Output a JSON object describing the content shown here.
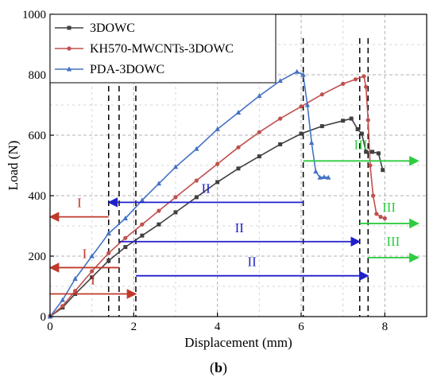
{
  "chart_data": {
    "type": "line",
    "xlabel": "Displacement (mm)",
    "ylabel": "Load (N)",
    "xlim": [
      0,
      9
    ],
    "ylim": [
      0,
      1000
    ],
    "x_ticks": [
      0,
      2,
      4,
      6,
      8
    ],
    "y_ticks": [
      0,
      200,
      400,
      600,
      800,
      1000
    ],
    "grid": "dashed",
    "legend_position": "top-left",
    "series": [
      {
        "name": "3DOWC",
        "color": "#404040",
        "marker": "square",
        "x": [
          0,
          0.3,
          0.6,
          1.0,
          1.4,
          1.8,
          2.2,
          2.6,
          3.0,
          3.5,
          4.0,
          4.5,
          5.0,
          5.5,
          6.0,
          6.5,
          7.0,
          7.2,
          7.35,
          7.45,
          7.55,
          7.7,
          7.85,
          7.95
        ],
        "y": [
          0,
          30,
          75,
          130,
          185,
          230,
          268,
          305,
          345,
          395,
          445,
          490,
          530,
          570,
          605,
          630,
          648,
          655,
          620,
          605,
          545,
          545,
          540,
          485
        ]
      },
      {
        "name": "KH570-MWCNTs-3DOWC",
        "color": "#c0504d",
        "marker": "circle",
        "x": [
          0,
          0.3,
          0.6,
          1.0,
          1.4,
          1.8,
          2.2,
          2.6,
          3.0,
          3.5,
          4.0,
          4.5,
          5.0,
          5.5,
          6.0,
          6.5,
          7.0,
          7.3,
          7.5,
          7.55,
          7.6,
          7.65,
          7.72,
          7.8,
          7.9,
          8.0
        ],
        "y": [
          0,
          35,
          85,
          150,
          210,
          260,
          305,
          350,
          395,
          450,
          505,
          560,
          610,
          655,
          695,
          735,
          770,
          785,
          795,
          760,
          650,
          500,
          400,
          340,
          330,
          325
        ]
      },
      {
        "name": "PDA-3DOWC",
        "color": "#4472c4",
        "marker": "triangle",
        "x": [
          0,
          0.3,
          0.6,
          1.0,
          1.4,
          1.8,
          2.2,
          2.6,
          3.0,
          3.5,
          4.0,
          4.5,
          5.0,
          5.5,
          5.9,
          6.05,
          6.15,
          6.25,
          6.35,
          6.45,
          6.55,
          6.65
        ],
        "y": [
          0,
          55,
          125,
          200,
          275,
          325,
          385,
          440,
          495,
          555,
          620,
          675,
          730,
          780,
          810,
          800,
          700,
          575,
          480,
          460,
          462,
          460
        ]
      }
    ],
    "vlines": [
      {
        "x": 1.4,
        "color": "#000000"
      },
      {
        "x": 1.65,
        "color": "#000000"
      },
      {
        "x": 2.05,
        "color": "#000000"
      },
      {
        "x": 6.05,
        "color": "#000000"
      },
      {
        "x": 7.4,
        "color": "#000000"
      },
      {
        "x": 7.6,
        "color": "#000000"
      }
    ],
    "annotations": [
      {
        "label": "I",
        "x_from": 1.4,
        "x_to": 0,
        "y": 330,
        "color": "#c0392b",
        "text_y_offset": -12
      },
      {
        "label": "I",
        "x_from": 1.65,
        "x_to": 0,
        "y": 162,
        "color": "#c0392b",
        "text_y_offset": -12
      },
      {
        "label": "I",
        "x_from": 0,
        "x_to": 2.05,
        "y": 75,
        "color": "#c0392b",
        "text_y_offset": -12
      },
      {
        "label": "II",
        "x_from": 6.05,
        "x_to": 1.4,
        "y": 378,
        "color": "#1f1fcc",
        "text_y_offset": -12
      },
      {
        "label": "II",
        "x_from": 1.65,
        "x_to": 7.4,
        "y": 248,
        "color": "#1f1fcc",
        "text_y_offset": -12
      },
      {
        "label": "II",
        "x_from": 2.05,
        "x_to": 7.6,
        "y": 135,
        "color": "#1f1fcc",
        "text_y_offset": -12
      },
      {
        "label": "III",
        "x_from": 6.05,
        "x_to": 8.8,
        "y": 515,
        "color": "#2ecc40",
        "text_y_offset": -15
      },
      {
        "label": "III",
        "x_from": 7.4,
        "x_to": 8.8,
        "y": 308,
        "color": "#2ecc40",
        "text_y_offset": -15
      },
      {
        "label": "III",
        "x_from": 7.6,
        "x_to": 8.8,
        "y": 195,
        "color": "#2ecc40",
        "text_y_offset": -15
      }
    ]
  },
  "caption": {
    "open": "(",
    "letter": "b",
    "close": ")"
  }
}
